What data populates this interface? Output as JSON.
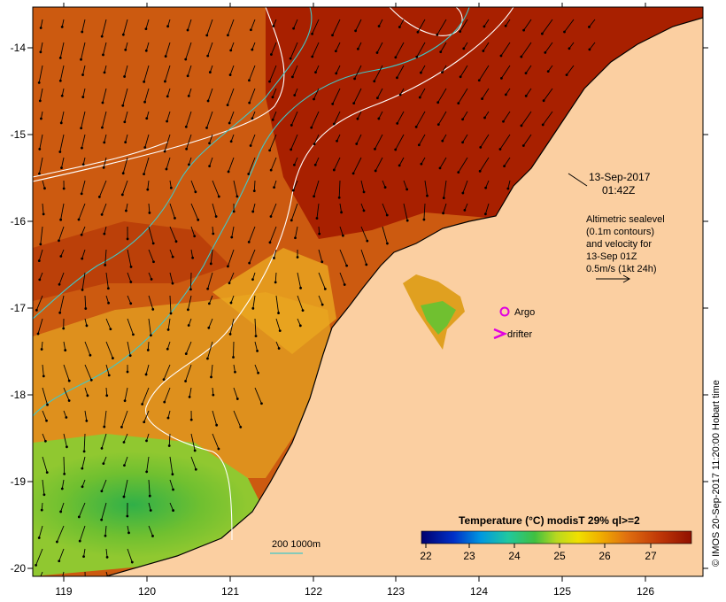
{
  "map": {
    "lon_ticks": [
      "119",
      "120",
      "121",
      "122",
      "123",
      "124",
      "125",
      "126"
    ],
    "lat_ticks": [
      "-14",
      "-15",
      "-16",
      "-17",
      "-18",
      "-19",
      "-20"
    ]
  },
  "annotation": {
    "date": "13-Sep-2017",
    "time": "01:42Z",
    "altimetry_lines": [
      "Altimetric sealevel",
      "(0.1m contours)",
      "and velocity for",
      "13-Sep 01Z",
      "0.5m/s (1kt 24h)"
    ]
  },
  "legend": {
    "argo_label": "Argo",
    "drifter_label": "drifter",
    "depth_label": "200  1000m"
  },
  "colorbar": {
    "title": "Temperature (°C) modisT 29% ql>=2",
    "ticks": [
      "22",
      "23",
      "24",
      "25",
      "26",
      "27"
    ]
  },
  "credit": "© IMOS 20-Sep-2017 11:20:00 Hobart time",
  "colors": {
    "land": "#fbcfa1",
    "warm_sea": "#a82000",
    "mid_sea": "#cc5a10",
    "cool_sea": "#e09a20",
    "cold_sea": "#52c040",
    "contour": "#ffffff",
    "isobath": "#40c8c8",
    "argo": "#e000e0",
    "drifter": "#e000e0"
  }
}
